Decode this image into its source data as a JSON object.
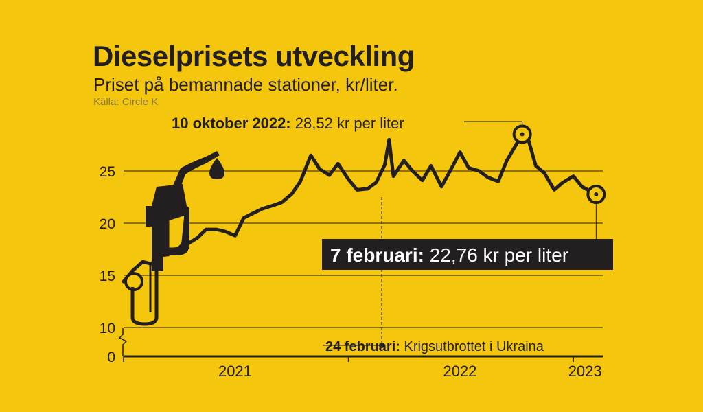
{
  "title": "Dieselprisets utveckling",
  "subtitle": "Priset på bemannade stationer, kr/liter.",
  "source": "Källa: Circle K",
  "colors": {
    "background": "#F5C60E",
    "ink": "#231F20",
    "label_text_on_dark": "#FFFFFF"
  },
  "chart_data": {
    "type": "line",
    "ylabel": "kr/liter",
    "yticks": [
      0,
      10,
      15,
      20,
      25
    ],
    "axis_break": true,
    "xlabels": [
      "2021",
      "2022",
      "2023"
    ],
    "series": [
      {
        "values_x": [
          "2021-01-01",
          "2021-01-15",
          "2021-02-01",
          "2021-02-15",
          "2021-03-01",
          "2021-03-15",
          "2021-04-01",
          "2021-04-15",
          "2021-05-01",
          "2021-05-15",
          "2021-06-01",
          "2021-06-15",
          "2021-07-01",
          "2021-07-15",
          "2021-08-01",
          "2021-08-15",
          "2021-09-01",
          "2021-09-15",
          "2021-10-01",
          "2021-10-15",
          "2021-11-01",
          "2021-11-15",
          "2021-12-01",
          "2021-12-15",
          "2022-01-01",
          "2022-01-15",
          "2022-02-01",
          "2022-02-15",
          "2022-03-01",
          "2022-03-08",
          "2022-03-15",
          "2022-04-01",
          "2022-04-15",
          "2022-05-01",
          "2022-05-15",
          "2022-06-01",
          "2022-06-15",
          "2022-07-01",
          "2022-07-15",
          "2022-08-01",
          "2022-08-15",
          "2022-09-01",
          "2022-09-15",
          "2022-10-10",
          "2022-10-20",
          "2022-11-01",
          "2022-11-15",
          "2022-12-01",
          "2022-12-15",
          "2023-01-01",
          "2023-01-15",
          "2023-02-07"
        ],
        "values": [
          14.4,
          15.4,
          16.3,
          16.1,
          16.9,
          17.0,
          17.8,
          18.0,
          18.6,
          19.4,
          19.4,
          19.2,
          18.8,
          20.5,
          21.0,
          21.4,
          21.7,
          22.0,
          22.8,
          24.0,
          26.5,
          25.2,
          24.6,
          25.7,
          24.2,
          23.2,
          23.3,
          23.9,
          25.6,
          28.0,
          24.5,
          26.0,
          25.0,
          24.1,
          25.5,
          23.5,
          25.0,
          26.8,
          25.3,
          25.0,
          24.4,
          24.0,
          26.0,
          28.52,
          28.0,
          25.5,
          24.8,
          23.2,
          23.9,
          24.5,
          23.5,
          22.76
        ]
      }
    ],
    "annotations": {
      "peak": {
        "date_label": "10 oktober 2022:",
        "value_label": "28,52 kr per liter"
      },
      "latest": {
        "date_label": "7 februari:",
        "value_label": "22,76 kr per liter"
      },
      "war": {
        "date_label": "24 februari:",
        "text": "Krigsutbrottet i Ukraina"
      }
    }
  }
}
